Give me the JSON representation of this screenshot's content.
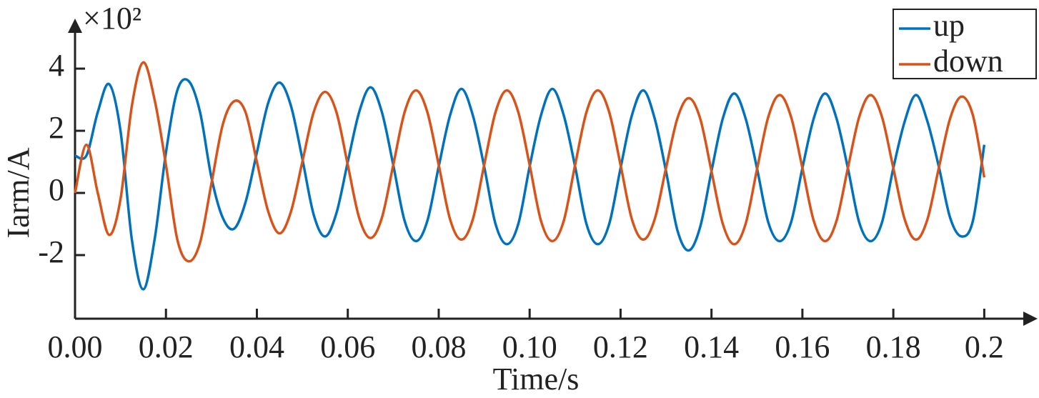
{
  "chart_data": {
    "type": "line",
    "y_multiplier": "×10²",
    "xlabel": "Time/s",
    "ylabel": "Iarm/A",
    "x": [
      0,
      0.0025,
      0.005,
      0.0075,
      0.01,
      0.0125,
      0.015,
      0.0175,
      0.02,
      0.0225,
      0.025,
      0.0275,
      0.03,
      0.0325,
      0.035,
      0.0375,
      0.04,
      0.0425,
      0.045,
      0.0475,
      0.05,
      0.0525,
      0.055,
      0.0575,
      0.06,
      0.0625,
      0.065,
      0.0675,
      0.07,
      0.0725,
      0.075,
      0.0775,
      0.08,
      0.0825,
      0.085,
      0.0875,
      0.09,
      0.0925,
      0.095,
      0.0975,
      0.1,
      0.1025,
      0.105,
      0.1075,
      0.11,
      0.1125,
      0.115,
      0.1175,
      0.12,
      0.1225,
      0.125,
      0.1275,
      0.13,
      0.1325,
      0.135,
      0.1375,
      0.14,
      0.1425,
      0.145,
      0.1475,
      0.15,
      0.1525,
      0.155,
      0.1575,
      0.16,
      0.1625,
      0.165,
      0.1675,
      0.17,
      0.1725,
      0.175,
      0.1775,
      0.18,
      0.1825,
      0.185,
      0.1875,
      0.19,
      0.1925,
      0.195,
      0.1975,
      0.2
    ],
    "series": [
      {
        "name": "up",
        "color": "#0072bd",
        "values": [
          1.2,
          1.2,
          2.6,
          3.5,
          2.0,
          -1.5,
          -3.1,
          -1.5,
          1.3,
          3.3,
          3.6,
          2.6,
          0.5,
          -0.8,
          -1.15,
          -0.3,
          1.3,
          2.9,
          3.55,
          2.8,
          1.1,
          -0.7,
          -1.4,
          -0.65,
          1.0,
          2.6,
          3.4,
          2.6,
          0.9,
          -0.9,
          -1.55,
          -0.9,
          0.85,
          2.5,
          3.35,
          2.5,
          0.85,
          -1.0,
          -1.65,
          -1.0,
          0.85,
          2.5,
          3.35,
          2.5,
          0.85,
          -1.0,
          -1.65,
          -1.0,
          0.8,
          2.5,
          3.3,
          2.4,
          0.7,
          -1.2,
          -1.85,
          -1.1,
          0.7,
          2.4,
          3.2,
          2.4,
          0.8,
          -0.95,
          -1.55,
          -0.95,
          0.8,
          2.4,
          3.2,
          2.4,
          0.8,
          -0.95,
          -1.55,
          -0.95,
          0.8,
          2.3,
          3.15,
          2.3,
          0.85,
          -0.8,
          -1.4,
          -0.9,
          1.55
        ]
      },
      {
        "name": "down",
        "color": "#d95319",
        "values": [
          0.0,
          1.55,
          0.0,
          -1.35,
          -0.2,
          2.8,
          4.2,
          3.0,
          0.9,
          -1.5,
          -2.2,
          -1.6,
          0.3,
          2.2,
          2.95,
          2.6,
          1.0,
          -0.6,
          -1.3,
          -0.6,
          1.0,
          2.6,
          3.25,
          2.6,
          0.9,
          -0.8,
          -1.45,
          -0.8,
          0.9,
          2.6,
          3.3,
          2.6,
          0.9,
          -0.85,
          -1.5,
          -0.85,
          0.9,
          2.6,
          3.3,
          2.6,
          0.9,
          -0.9,
          -1.55,
          -0.9,
          0.9,
          2.6,
          3.3,
          2.6,
          0.9,
          -0.85,
          -1.5,
          -0.85,
          0.8,
          2.4,
          3.05,
          2.4,
          0.7,
          -1.0,
          -1.65,
          -1.0,
          0.75,
          2.45,
          3.15,
          2.45,
          0.8,
          -0.9,
          -1.55,
          -0.9,
          0.8,
          2.45,
          3.15,
          2.45,
          0.8,
          -0.85,
          -1.5,
          -0.85,
          0.8,
          2.4,
          3.1,
          2.5,
          0.5
        ]
      }
    ],
    "xlim": [
      0,
      0.21
    ],
    "xticks": [
      {
        "value": 0,
        "label": "0.00"
      },
      {
        "value": 0.02,
        "label": "0.02"
      },
      {
        "value": 0.04,
        "label": "0.04"
      },
      {
        "value": 0.06,
        "label": "0.06"
      },
      {
        "value": 0.08,
        "label": "0.08"
      },
      {
        "value": 0.1,
        "label": "0.10"
      },
      {
        "value": 0.12,
        "label": "0.12"
      },
      {
        "value": 0.14,
        "label": "0.14"
      },
      {
        "value": 0.16,
        "label": "0.16"
      },
      {
        "value": 0.18,
        "label": "0.18"
      },
      0.2
    ],
    "ylim": [
      -4,
      5.3
    ],
    "yticks": [
      -2,
      0,
      2,
      4
    ],
    "grid": false,
    "legend": "upper right"
  }
}
